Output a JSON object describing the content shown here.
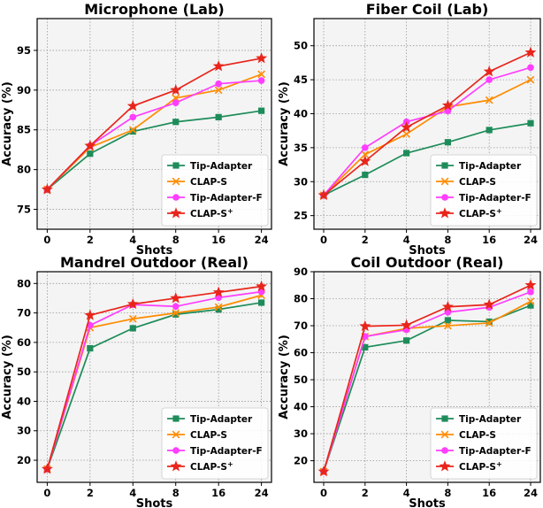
{
  "chart_data": [
    {
      "type": "line",
      "title": "Microphone (Lab)",
      "xlabel": "Shots",
      "ylabel": "Accuracy (%)",
      "categories": [
        "0",
        "2",
        "4",
        "8",
        "16",
        "24"
      ],
      "ylim": [
        72.5,
        99
      ],
      "yticks": [
        75,
        80,
        85,
        90,
        95
      ],
      "grid": true,
      "legend_position": "lower-right",
      "series": [
        {
          "name": "Tip-Adapter",
          "color": "#1e8c5a",
          "marker": "square",
          "values": [
            77.5,
            82.0,
            84.8,
            86.0,
            86.6,
            87.4
          ]
        },
        {
          "name": "CLAP-S",
          "color": "#ff8c00",
          "marker": "x",
          "values": [
            77.5,
            82.8,
            85.0,
            89.0,
            90.0,
            92.0
          ]
        },
        {
          "name": "Tip-Adapter-F",
          "color": "#ff3dff",
          "marker": "circle",
          "values": [
            77.5,
            83.0,
            86.6,
            88.4,
            90.8,
            91.2
          ]
        },
        {
          "name": "CLAP-S",
          "name_sup": "+",
          "color": "#e8251b",
          "marker": "star",
          "values": [
            77.5,
            83.0,
            88.0,
            90.0,
            93.0,
            94.0
          ]
        }
      ]
    },
    {
      "type": "line",
      "title": "Fiber Coil (Lab)",
      "xlabel": "Shots",
      "ylabel": "Accuracy (%)",
      "categories": [
        "0",
        "2",
        "4",
        "8",
        "16",
        "24"
      ],
      "ylim": [
        23,
        54
      ],
      "yticks": [
        25,
        30,
        35,
        40,
        45,
        50
      ],
      "grid": true,
      "legend_position": "lower-right",
      "series": [
        {
          "name": "Tip-Adapter",
          "color": "#1e8c5a",
          "marker": "square",
          "values": [
            28.0,
            31.0,
            34.2,
            35.8,
            37.6,
            38.6
          ]
        },
        {
          "name": "CLAP-S",
          "color": "#ff8c00",
          "marker": "x",
          "values": [
            28.0,
            34.0,
            37.0,
            41.0,
            42.0,
            45.0
          ]
        },
        {
          "name": "Tip-Adapter-F",
          "color": "#ff3dff",
          "marker": "circle",
          "values": [
            28.0,
            35.0,
            38.8,
            40.4,
            45.0,
            46.8
          ]
        },
        {
          "name": "CLAP-S",
          "name_sup": "+",
          "color": "#e8251b",
          "marker": "star",
          "values": [
            28.0,
            33.0,
            38.0,
            41.2,
            46.2,
            49.0
          ]
        }
      ]
    },
    {
      "type": "line",
      "title": "Mandrel Outdoor (Real)",
      "xlabel": "Shots",
      "ylabel": "Accuracy (%)",
      "categories": [
        "0",
        "2",
        "4",
        "8",
        "16",
        "24"
      ],
      "ylim": [
        12.5,
        84
      ],
      "yticks": [
        20,
        30,
        40,
        50,
        60,
        70,
        80
      ],
      "grid": true,
      "legend_position": "lower-right",
      "series": [
        {
          "name": "Tip-Adapter",
          "color": "#1e8c5a",
          "marker": "square",
          "values": [
            17.0,
            58.0,
            64.8,
            69.5,
            71.2,
            73.5
          ]
        },
        {
          "name": "CLAP-S",
          "color": "#ff8c00",
          "marker": "x",
          "values": [
            17.0,
            65.0,
            68.0,
            70.0,
            72.0,
            76.0
          ]
        },
        {
          "name": "Tip-Adapter-F",
          "color": "#ff3dff",
          "marker": "circle",
          "values": [
            17.0,
            65.8,
            72.8,
            72.2,
            75.2,
            77.2
          ]
        },
        {
          "name": "CLAP-S",
          "name_sup": "+",
          "color": "#e8251b",
          "marker": "star",
          "values": [
            17.0,
            69.2,
            73.0,
            75.0,
            77.0,
            79.0
          ]
        }
      ]
    },
    {
      "type": "line",
      "title": "Coil Outdoor (Real)",
      "xlabel": "Shots",
      "ylabel": "Accuracy (%)",
      "categories": [
        "0",
        "2",
        "4",
        "8",
        "16",
        "24"
      ],
      "ylim": [
        12,
        90
      ],
      "yticks": [
        20,
        30,
        40,
        50,
        60,
        70,
        80,
        90
      ],
      "grid": true,
      "legend_position": "lower-right",
      "series": [
        {
          "name": "Tip-Adapter",
          "color": "#1e8c5a",
          "marker": "square",
          "values": [
            16.0,
            62.0,
            64.5,
            72.0,
            71.5,
            77.5
          ]
        },
        {
          "name": "CLAP-S",
          "color": "#ff8c00",
          "marker": "x",
          "values": [
            16.0,
            66.0,
            69.0,
            70.0,
            71.0,
            79.0
          ]
        },
        {
          "name": "Tip-Adapter-F",
          "color": "#ff3dff",
          "marker": "circle",
          "values": [
            16.0,
            66.0,
            68.5,
            75.0,
            76.8,
            82.5
          ]
        },
        {
          "name": "CLAP-S",
          "name_sup": "+",
          "color": "#e8251b",
          "marker": "star",
          "values": [
            16.0,
            69.8,
            70.2,
            77.0,
            77.8,
            85.0
          ]
        }
      ]
    }
  ]
}
